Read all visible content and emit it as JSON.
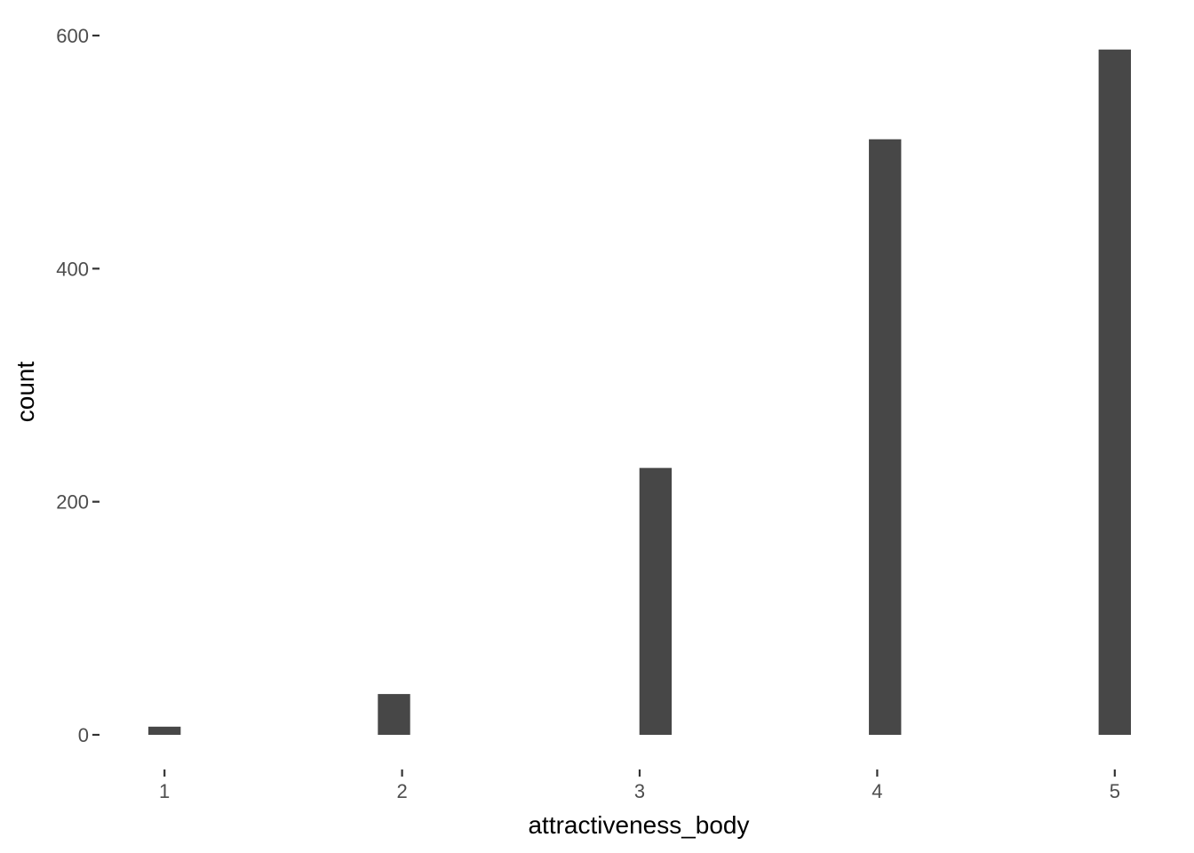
{
  "chart_data": {
    "type": "bar",
    "title": "",
    "xlabel": "attractiveness_body",
    "ylabel": "count",
    "x_ticks": [
      "1",
      "2",
      "3",
      "4",
      "5"
    ],
    "y_ticks": [
      "0",
      "200",
      "400",
      "600"
    ],
    "bars": [
      {
        "x_min": 0.932,
        "x_max": 1.068,
        "value": 7
      },
      {
        "x_min": 1.898,
        "x_max": 2.034,
        "value": 35
      },
      {
        "x_min": 2.999,
        "x_max": 3.135,
        "value": 229
      },
      {
        "x_min": 3.965,
        "x_max": 4.101,
        "value": 511
      },
      {
        "x_min": 4.932,
        "x_max": 5.068,
        "value": 588
      }
    ],
    "xlim": [
      0.932,
      5.068
    ],
    "ylim": [
      0,
      600
    ],
    "grid": false,
    "bar_color": "#474747",
    "axis_tick_color": "#333333",
    "label_color": "#4d4d4d"
  }
}
